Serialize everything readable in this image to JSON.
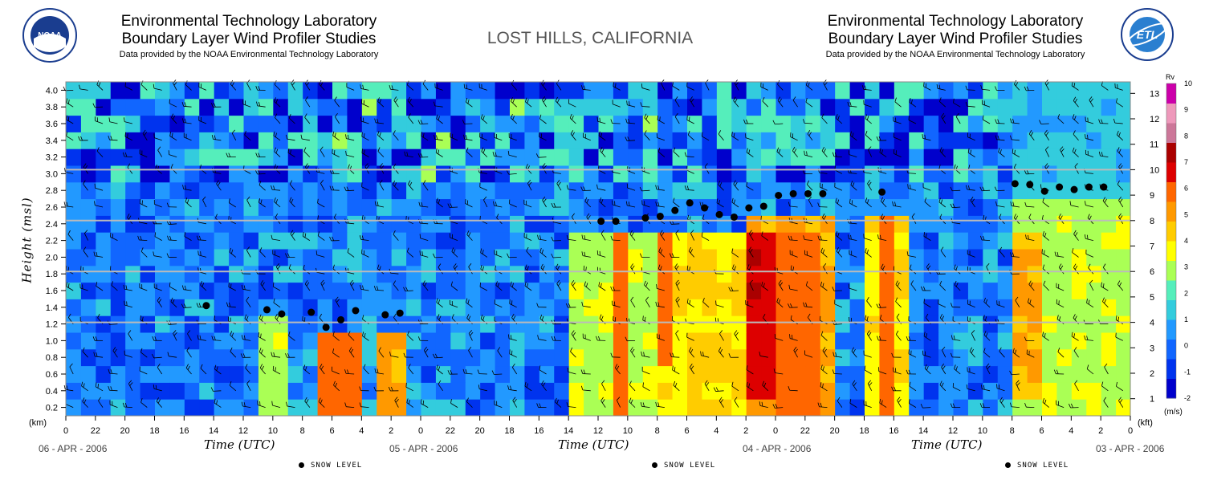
{
  "header": {
    "left": {
      "line1": "Environmental Technology Laboratory",
      "line2": "Boundary Layer Wind Profiler Studies",
      "line3": "Data provided by the NOAA Environmental Technology Laboratory"
    },
    "right": {
      "line1": "Environmental Technology Laboratory",
      "line2": "Boundary Layer Wind Profiler Studies",
      "line3": "Data provided by the NOAA Environmental Technology Laboratory"
    },
    "site": "LOST HILLS, CALIFORNIA",
    "noaa_logo_text": "NOAA",
    "etl_logo_text": "ETL"
  },
  "colors": {
    "scale": [
      "#0000cc",
      "#0033ee",
      "#1166ff",
      "#2299ff",
      "#33ccdd",
      "#55eebb",
      "#aaff55",
      "#ffff00",
      "#ffcc00",
      "#ff9900",
      "#ff6600",
      "#dd0000",
      "#aa0000",
      "#cc7799",
      "#ee99bb",
      "#cc00aa"
    ],
    "grid": "#bbbbbb"
  },
  "chart_data": {
    "type": "heatmap",
    "title": "LOST HILLS, CALIFORNIA",
    "ylabel": "Height (msl)",
    "y_unit_left": "(km)",
    "y_unit_right": "(kft)",
    "ylim_km": [
      0.1,
      4.1
    ],
    "y_ticks_km": [
      "0.2",
      "0.4",
      "0.6",
      "0.8",
      "1.0",
      "1.2",
      "1.4",
      "1.6",
      "1.8",
      "2.0",
      "2.2",
      "2.4",
      "2.6",
      "2.8",
      "3.0",
      "3.2",
      "3.4",
      "3.6",
      "3.8",
      "4.0"
    ],
    "y_ticks_kft": [
      "1",
      "2",
      "3",
      "4",
      "5",
      "6",
      "7",
      "8",
      "9",
      "10",
      "11",
      "12",
      "13"
    ],
    "xlabel": "Time (UTC)",
    "x_tick_labels": [
      "0",
      "22",
      "20",
      "18",
      "16",
      "14",
      "12",
      "10",
      "8",
      "6",
      "4",
      "2",
      "0",
      "22",
      "20",
      "18",
      "16",
      "14",
      "12",
      "10",
      "8",
      "6",
      "4",
      "2",
      "0",
      "22",
      "20",
      "18",
      "16",
      "14",
      "12",
      "10",
      "8",
      "6",
      "4",
      "2",
      "0"
    ],
    "dates": [
      "06 - APR - 2006",
      "05 - APR - 2006",
      "04 - APR - 2006",
      "03 - APR - 2006"
    ],
    "colorbar": {
      "title": "Rv",
      "unit": "(m/s)",
      "ticks": [
        "10",
        "9",
        "8",
        "7",
        "6",
        "5",
        "4",
        "3",
        "2",
        "1",
        "0",
        "-1",
        "-2"
      ],
      "range": [
        -2,
        10
      ]
    },
    "legend": "SNOW LEVEL",
    "reference_lines_kft": [
      4,
      6,
      8,
      10
    ],
    "snow_level": [
      {
        "hours_before_end": 62.5,
        "km": 1.42
      },
      {
        "hours_before_end": 58.4,
        "km": 1.37
      },
      {
        "hours_before_end": 57.4,
        "km": 1.32
      },
      {
        "hours_before_end": 55.4,
        "km": 1.34
      },
      {
        "hours_before_end": 54.4,
        "km": 1.16
      },
      {
        "hours_before_end": 53.4,
        "km": 1.25
      },
      {
        "hours_before_end": 52.4,
        "km": 1.36
      },
      {
        "hours_before_end": 50.4,
        "km": 1.31
      },
      {
        "hours_before_end": 49.4,
        "km": 1.33
      },
      {
        "hours_before_end": 35.8,
        "km": 2.43
      },
      {
        "hours_before_end": 34.8,
        "km": 2.43
      },
      {
        "hours_before_end": 32.8,
        "km": 2.47
      },
      {
        "hours_before_end": 31.8,
        "km": 2.49
      },
      {
        "hours_before_end": 30.8,
        "km": 2.56
      },
      {
        "hours_before_end": 29.8,
        "km": 2.65
      },
      {
        "hours_before_end": 28.8,
        "km": 2.59
      },
      {
        "hours_before_end": 27.8,
        "km": 2.51
      },
      {
        "hours_before_end": 26.8,
        "km": 2.48
      },
      {
        "hours_before_end": 25.8,
        "km": 2.59
      },
      {
        "hours_before_end": 24.8,
        "km": 2.61
      },
      {
        "hours_before_end": 23.8,
        "km": 2.74
      },
      {
        "hours_before_end": 22.8,
        "km": 2.76
      },
      {
        "hours_before_end": 21.8,
        "km": 2.76
      },
      {
        "hours_before_end": 20.8,
        "km": 2.76
      },
      {
        "hours_before_end": 16.8,
        "km": 2.78
      },
      {
        "hours_before_end": 7.8,
        "km": 2.88
      },
      {
        "hours_before_end": 6.8,
        "km": 2.87
      },
      {
        "hours_before_end": 5.8,
        "km": 2.79
      },
      {
        "hours_before_end": 4.8,
        "km": 2.84
      },
      {
        "hours_before_end": 3.8,
        "km": 2.81
      },
      {
        "hours_before_end": 2.8,
        "km": 2.84
      },
      {
        "hours_before_end": 1.8,
        "km": 2.84
      }
    ],
    "velocity_regions": [
      {
        "t_from": 0,
        "t_to": 8,
        "km_from": 0.2,
        "km_to": 2.8,
        "rv": 3
      },
      {
        "t_from": 6,
        "t_to": 8,
        "km_from": 0.4,
        "km_to": 2.4,
        "rv": 5
      },
      {
        "t_from": 0,
        "t_to": 8,
        "km_from": 2.8,
        "km_to": 4.0,
        "rv": 1
      },
      {
        "t_from": 15,
        "t_to": 18,
        "km_from": 0.2,
        "km_to": 2.6,
        "rv": 4
      },
      {
        "t_from": 16,
        "t_to": 17,
        "km_from": 0.2,
        "km_to": 2.6,
        "rv": 6
      },
      {
        "t_from": 20,
        "t_to": 26,
        "km_from": 0.2,
        "km_to": 2.6,
        "rv": 5
      },
      {
        "t_from": 21,
        "t_to": 24,
        "km_from": 0.2,
        "km_to": 2.4,
        "rv": 6
      },
      {
        "t_from": 24,
        "t_to": 28,
        "km_from": 0.4,
        "km_to": 2.2,
        "rv": 7
      },
      {
        "t_from": 26,
        "t_to": 32,
        "km_from": 0.2,
        "km_to": 2.4,
        "rv": 4
      },
      {
        "t_from": 31,
        "t_to": 32,
        "km_from": 0.8,
        "km_to": 2.2,
        "rv": 6
      },
      {
        "t_from": 32,
        "t_to": 38,
        "km_from": 0.2,
        "km_to": 2.4,
        "rv": 3
      },
      {
        "t_from": 34,
        "t_to": 35,
        "km_from": 0.2,
        "km_to": 2.2,
        "rv": 6
      },
      {
        "t_from": 49,
        "t_to": 51,
        "km_from": 0.2,
        "km_to": 1.1,
        "rv": 5
      },
      {
        "t_from": 52,
        "t_to": 55,
        "km_from": 0.2,
        "km_to": 1.1,
        "rv": 6
      },
      {
        "t_from": 57,
        "t_to": 59,
        "km_from": 0.2,
        "km_to": 1.3,
        "rv": 3
      }
    ]
  }
}
